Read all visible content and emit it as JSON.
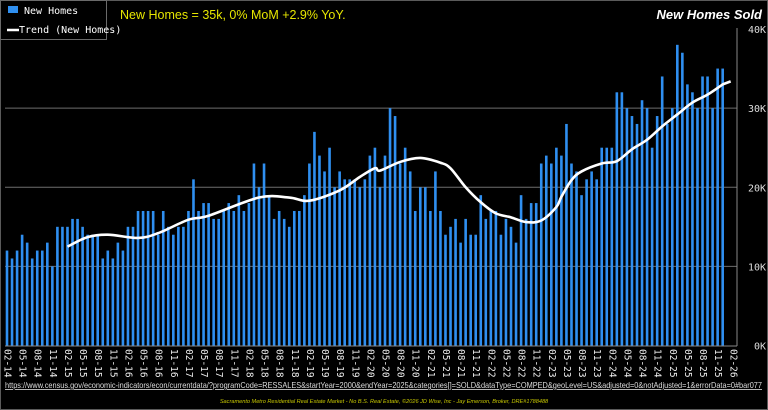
{
  "chart_data": {
    "type": "bar",
    "title": "New Homes Sold",
    "subtitle": "New Homes = 35k, 0% MoM +2.9% YoY.",
    "xlabel": "",
    "ylabel": "",
    "ylim": [
      0,
      40000
    ],
    "y_ticks": [
      "0K",
      "10K",
      "20K",
      "30K",
      "40K"
    ],
    "y_axis_side": "right",
    "grid": true,
    "legend_placement": "top-left",
    "x_tick_labels": [
      "02-14",
      "05-14",
      "08-14",
      "11-14",
      "02-15",
      "05-15",
      "08-15",
      "11-15",
      "02-16",
      "05-16",
      "08-16",
      "11-16",
      "02-17",
      "05-17",
      "08-17",
      "11-17",
      "02-18",
      "05-18",
      "08-18",
      "11-18",
      "02-19",
      "05-19",
      "08-19",
      "11-19",
      "02-20",
      "05-20",
      "08-20",
      "11-20",
      "02-21",
      "05-21",
      "08-21",
      "11-21",
      "02-22",
      "05-22",
      "08-22",
      "11-22",
      "02-23",
      "05-23",
      "08-23",
      "11-23",
      "02-24",
      "05-24",
      "08-24",
      "11-24",
      "02-25",
      "05-25",
      "08-25",
      "11-25",
      "02-26"
    ],
    "categories": [
      "02-14",
      "03-14",
      "04-14",
      "05-14",
      "06-14",
      "07-14",
      "08-14",
      "09-14",
      "10-14",
      "11-14",
      "12-14",
      "01-15",
      "02-15",
      "03-15",
      "04-15",
      "05-15",
      "06-15",
      "07-15",
      "08-15",
      "09-15",
      "10-15",
      "11-15",
      "12-15",
      "01-16",
      "02-16",
      "03-16",
      "04-16",
      "05-16",
      "06-16",
      "07-16",
      "08-16",
      "09-16",
      "10-16",
      "11-16",
      "12-16",
      "01-17",
      "02-17",
      "03-17",
      "04-17",
      "05-17",
      "06-17",
      "07-17",
      "08-17",
      "09-17",
      "10-17",
      "11-17",
      "12-17",
      "01-18",
      "02-18",
      "03-18",
      "04-18",
      "05-18",
      "06-18",
      "07-18",
      "08-18",
      "09-18",
      "10-18",
      "11-18",
      "12-18",
      "01-19",
      "02-19",
      "03-19",
      "04-19",
      "05-19",
      "06-19",
      "07-19",
      "08-19",
      "09-19",
      "10-19",
      "11-19",
      "12-19",
      "01-20",
      "02-20",
      "03-20",
      "04-20",
      "05-20",
      "06-20",
      "07-20",
      "08-20",
      "09-20",
      "10-20",
      "11-20",
      "12-20",
      "01-21",
      "02-21",
      "03-21",
      "04-21",
      "05-21",
      "06-21",
      "07-21",
      "08-21",
      "09-21",
      "10-21",
      "11-21",
      "12-21",
      "01-22",
      "02-22",
      "03-22",
      "04-22",
      "05-22",
      "06-22",
      "07-22",
      "08-22",
      "09-22",
      "10-22",
      "11-22",
      "12-22",
      "01-23",
      "02-23",
      "03-23",
      "04-23",
      "05-23",
      "06-23",
      "07-23",
      "08-23",
      "09-23",
      "10-23",
      "11-23",
      "12-23",
      "01-24",
      "02-24",
      "03-24",
      "04-24",
      "05-24",
      "06-24",
      "07-24",
      "08-24",
      "09-24",
      "10-24",
      "11-24",
      "12-24",
      "01-25",
      "02-25",
      "03-25",
      "04-25",
      "05-25",
      "06-25",
      "07-25",
      "08-25",
      "09-25",
      "10-25",
      "11-25",
      "12-25"
    ],
    "series": [
      {
        "name": "New Homes",
        "type": "bar",
        "color": "#2f8ff0",
        "values": [
          12000,
          11000,
          12000,
          14000,
          13000,
          11000,
          12000,
          12000,
          13000,
          10000,
          15000,
          15000,
          15000,
          16000,
          16000,
          15000,
          14000,
          14000,
          14000,
          11000,
          12000,
          11000,
          13000,
          12000,
          15000,
          15000,
          17000,
          17000,
          17000,
          17000,
          14000,
          17000,
          15000,
          14000,
          15000,
          15000,
          17000,
          21000,
          17000,
          18000,
          18000,
          16000,
          16000,
          17000,
          18000,
          17000,
          19000,
          17000,
          18000,
          23000,
          20000,
          23000,
          19000,
          16000,
          17000,
          16000,
          15000,
          17000,
          17000,
          19000,
          23000,
          27000,
          24000,
          22000,
          25000,
          20000,
          22000,
          21000,
          21000,
          21000,
          20000,
          21000,
          24000,
          25000,
          20000,
          24000,
          30000,
          29000,
          23000,
          25000,
          22000,
          17000,
          20000,
          20000,
          17000,
          22000,
          17000,
          14000,
          15000,
          16000,
          13000,
          16000,
          14000,
          14000,
          19000,
          16000,
          17000,
          17000,
          14000,
          16000,
          15000,
          13000,
          19000,
          16000,
          18000,
          18000,
          23000,
          24000,
          23000,
          25000,
          24000,
          28000,
          23000,
          22000,
          19000,
          21000,
          22000,
          21000,
          25000,
          25000,
          25000,
          32000,
          32000,
          30000,
          29000,
          28000,
          31000,
          30000,
          25000,
          29000,
          34000,
          28000,
          30000,
          38000,
          37000,
          33000,
          32000,
          30000,
          34000,
          34000,
          30000,
          35000,
          35000
        ]
      },
      {
        "name": "Trend (New Homes)",
        "type": "line",
        "color": "#ffffff",
        "points": [
          {
            "x": "02-15",
            "y": 12500
          },
          {
            "x": "06-15",
            "y": 13700
          },
          {
            "x": "10-15",
            "y": 14000
          },
          {
            "x": "04-16",
            "y": 13600
          },
          {
            "x": "08-16",
            "y": 14200
          },
          {
            "x": "02-17",
            "y": 15900
          },
          {
            "x": "06-17",
            "y": 16400
          },
          {
            "x": "04-18",
            "y": 18700
          },
          {
            "x": "10-18",
            "y": 18700
          },
          {
            "x": "02-19",
            "y": 18300
          },
          {
            "x": "08-19",
            "y": 19600
          },
          {
            "x": "12-19",
            "y": 21300
          },
          {
            "x": "03-20",
            "y": 22400
          },
          {
            "x": "04-20",
            "y": 22100
          },
          {
            "x": "08-20",
            "y": 23200
          },
          {
            "x": "12-20",
            "y": 23700
          },
          {
            "x": "04-21",
            "y": 23100
          },
          {
            "x": "06-21",
            "y": 22400
          },
          {
            "x": "09-21",
            "y": 20000
          },
          {
            "x": "12-21",
            "y": 18100
          },
          {
            "x": "03-22",
            "y": 16700
          },
          {
            "x": "06-22",
            "y": 16200
          },
          {
            "x": "09-22",
            "y": 15600
          },
          {
            "x": "12-22",
            "y": 15800
          },
          {
            "x": "03-23",
            "y": 17500
          },
          {
            "x": "04-23",
            "y": 18800
          },
          {
            "x": "06-23",
            "y": 20900
          },
          {
            "x": "08-23",
            "y": 22000
          },
          {
            "x": "12-23",
            "y": 23000
          },
          {
            "x": "03-24",
            "y": 23300
          },
          {
            "x": "06-24",
            "y": 24800
          },
          {
            "x": "09-24",
            "y": 26000
          },
          {
            "x": "12-24",
            "y": 27700
          },
          {
            "x": "03-25",
            "y": 29200
          },
          {
            "x": "06-25",
            "y": 30700
          },
          {
            "x": "09-25",
            "y": 31700
          },
          {
            "x": "12-25",
            "y": 33000
          }
        ]
      }
    ]
  },
  "legend": {
    "bar_label": "New Homes",
    "line_label": "Trend (New Homes)"
  },
  "source_url": "https://www.census.gov/economic-indicators/econ/currentdata/?programCode=RESSALES&startYear=2000&endYear=2025&categories[]=SOLD&dataType=COMPED&geoLevel=US&adjusted=0&notAdjusted=1&errorData=0#bar077",
  "footer": "Sacramento Metro Residential Real Estate Market - No B.S. Real Estate, ©2026 JD Wise, Inc - Jay Emerson, Broker, DRE#1788488",
  "colors": {
    "background": "#000000",
    "bar": "#2f8ff0",
    "trend": "#ffffff",
    "subtitle": "#e6e600",
    "footer": "#c8c800",
    "grid": "#707070"
  }
}
